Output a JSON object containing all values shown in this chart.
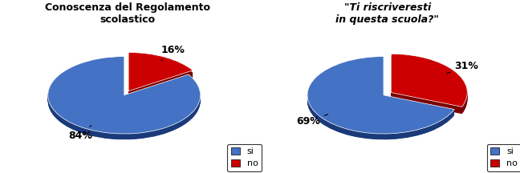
{
  "chart1": {
    "title": "Conoscenza del Regolamento\nscolastico",
    "title_italic": false,
    "values": [
      84,
      16
    ],
    "colors": [
      "#4472C4",
      "#CC0000"
    ],
    "dark_colors": [
      "#1a3a7a",
      "#7a0000"
    ],
    "explode": [
      0.0,
      0.12
    ],
    "pct_labels": [
      "84%",
      "16%"
    ],
    "legend_labels": [
      "si",
      "no"
    ],
    "startangle": 90
  },
  "chart2": {
    "title": "\"Ti riscriveresti\nin questa scuola?\"",
    "title_italic": true,
    "values": [
      69,
      31
    ],
    "colors": [
      "#4472C4",
      "#CC0000"
    ],
    "dark_colors": [
      "#1a3a7a",
      "#7a0000"
    ],
    "explode": [
      0.0,
      0.12
    ],
    "pct_labels": [
      "69%",
      "31%"
    ],
    "legend_labels": [
      "si",
      "no"
    ],
    "startangle": 90
  },
  "background_color": "#ffffff",
  "yscale": 0.5,
  "depth": 0.15,
  "depth_layers": 20
}
